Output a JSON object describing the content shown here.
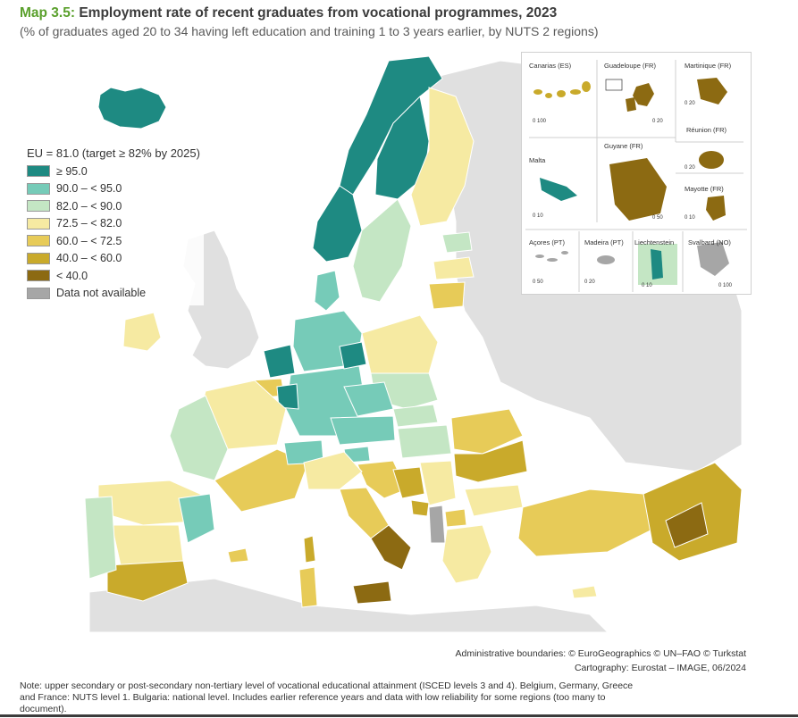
{
  "header": {
    "map_number": "Map 3.5:",
    "title": "Employment rate of recent graduates from vocational programmes, 2023",
    "subtitle": "(% of graduates aged 20 to 34 having left education and training 1 to 3 years earlier, by NUTS 2 regions)"
  },
  "legend": {
    "title": "EU = 81.0 (target ≥ 82% by 2025)",
    "classes": [
      {
        "label": "≥ 95.0",
        "color": "#1e8a82"
      },
      {
        "label": "90.0 – < 95.0",
        "color": "#76cbb8"
      },
      {
        "label": "82.0 – < 90.0",
        "color": "#c4e6c4"
      },
      {
        "label": "72.5 – < 82.0",
        "color": "#f6eaa2"
      },
      {
        "label": "60.0 – < 72.5",
        "color": "#e7cb58"
      },
      {
        "label": "40.0 – < 60.0",
        "color": "#c9aa2b"
      },
      {
        "label": "< 40.0",
        "color": "#8c6a12"
      },
      {
        "label": "Data not available",
        "color": "#a6a6a6"
      }
    ]
  },
  "insets": {
    "canarias": {
      "label": "Canarias (ES)",
      "scale": "0   100"
    },
    "guadeloupe": {
      "label": "Guadeloupe (FR)",
      "scale": "0   20"
    },
    "martinique": {
      "label": "Martinique (FR)",
      "scale": "0   20"
    },
    "reunion": {
      "label": "Réunion (FR)",
      "scale": "0   20"
    },
    "malta": {
      "label": "Malta",
      "scale": "0   10"
    },
    "guyane": {
      "label": "Guyane (FR)",
      "scale": "0   50"
    },
    "mayotte": {
      "label": "Mayotte (FR)",
      "scale": "0   10"
    },
    "acores": {
      "label": "Açores (PT)",
      "scale": "0   50"
    },
    "madeira": {
      "label": "Madeira (PT)",
      "scale": "0   20"
    },
    "liechtenstein": {
      "label": "Liechtenstein",
      "scale": "0   10"
    },
    "svalbard": {
      "label": "Svalbard (NO)",
      "scale": "0 100"
    }
  },
  "attribution": {
    "line1": "Administrative boundaries: © EuroGeographics © UN–FAO © Turkstat",
    "line2": "Cartography: Eurostat – IMAGE, 06/2024"
  },
  "note": "Note: upper secondary or post-secondary non-tertiary level of vocational educational attainment (ISCED levels 3 and 4). Belgium, Germany, Greece and France: NUTS level 1. Bulgaria: national level. Includes earlier reference years and data with low reliability for some regions (too many to document).",
  "colors": {
    "non_eu_land": "#e0e0e0",
    "sea": "#ffffff",
    "border": "#ffffff"
  }
}
